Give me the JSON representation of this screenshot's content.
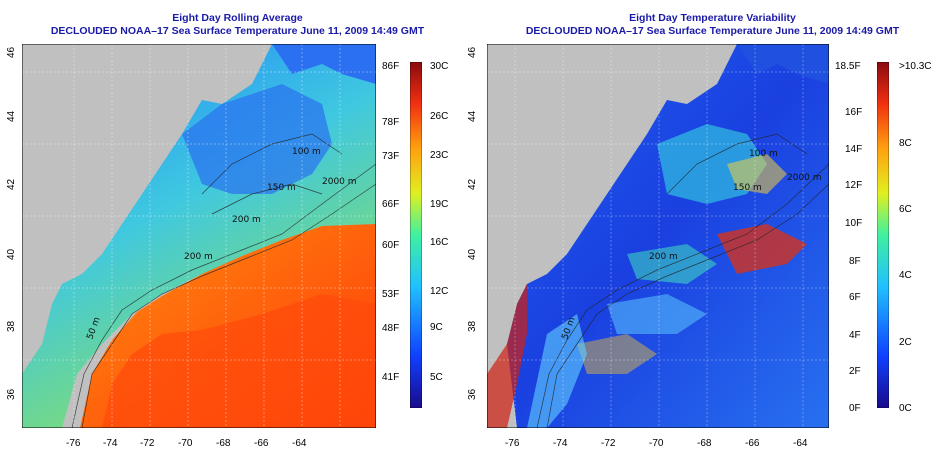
{
  "left_panel": {
    "title_line1": "Eight Day Rolling Average",
    "title_line2": "DECLOUDED NOAA–17 Sea Surface Temperature June 11, 2009 14:49 GMT",
    "lat_ticks": [
      "46",
      "44",
      "42",
      "40",
      "38",
      "36"
    ],
    "lon_ticks": [
      "-76",
      "-74",
      "-72",
      "-70",
      "-68",
      "-66",
      "-64"
    ],
    "contour_labels": [
      "100 m",
      "150 m",
      "2000 m",
      "200 m",
      "200 m",
      "50 m"
    ],
    "colorbar_f": [
      "86F",
      "78F",
      "73F",
      "66F",
      "60F",
      "53F",
      "48F",
      "41F"
    ],
    "colorbar_c": [
      "30C",
      "26C",
      "23C",
      "19C",
      "16C",
      "12C",
      "9C",
      "5C"
    ],
    "colors": {
      "land": "#c0c0c0",
      "cold": "#2a7fff",
      "warm": "#ff5a10"
    }
  },
  "right_panel": {
    "title_line1": "Eight Day Temperature Variability",
    "title_line2": "DECLOUDED NOAA–17 Sea Surface Temperature June 11, 2009 14:49 GMT",
    "lat_ticks": [
      "46",
      "44",
      "42",
      "40",
      "38",
      "36"
    ],
    "lon_ticks": [
      "-76",
      "-74",
      "-72",
      "-70",
      "-68",
      "-66",
      "-64"
    ],
    "contour_labels": [
      "100 m",
      "150 m",
      "2000 m",
      "200 m",
      "50 m"
    ],
    "colorbar_f": [
      "18.5F",
      "16F",
      "14F",
      "12F",
      "10F",
      "8F",
      "6F",
      "4F",
      "2F",
      "0F"
    ],
    "colorbar_c": [
      ">10.3C",
      "8C",
      "6C",
      "4C",
      "2C",
      "0C"
    ],
    "colors": {
      "land": "#c0c0c0",
      "low": "#1030e0",
      "high": "#e02010"
    }
  }
}
